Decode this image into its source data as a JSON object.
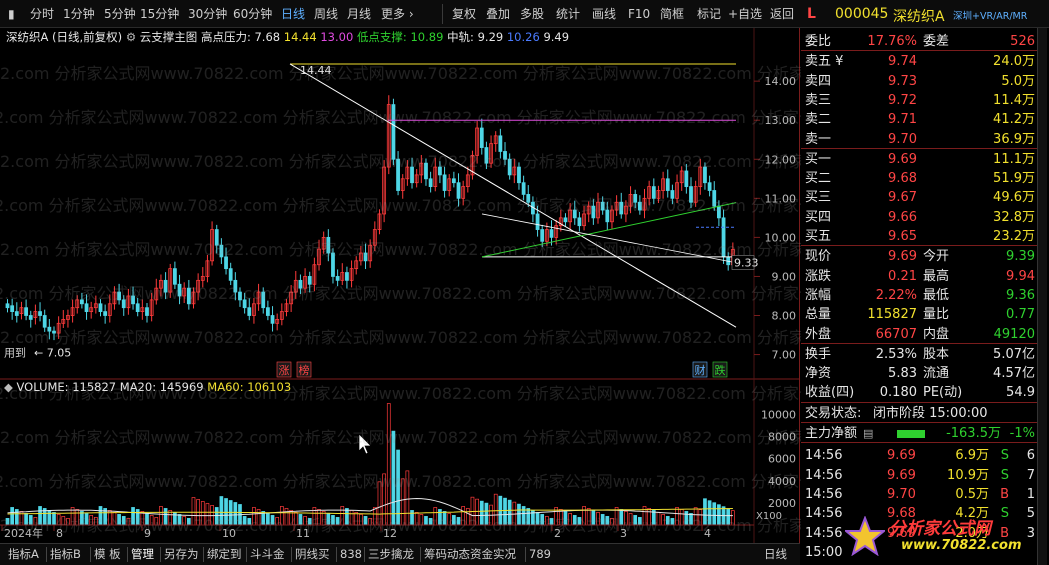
{
  "toolbar": {
    "periods": [
      "分时",
      "1分钟",
      "5分钟",
      "15分钟",
      "30分钟",
      "60分钟",
      "日线",
      "周线",
      "月线",
      "更多"
    ],
    "active_period": "日线",
    "tools": [
      "复权",
      "叠加",
      "多股",
      "统计",
      "画线",
      "F10",
      "简框",
      "标记",
      "+自选",
      "返回"
    ]
  },
  "indicator": {
    "stock": "深纺织A",
    "mode": "(日线,前复权)",
    "formula": "云支撑主图",
    "high_pressure_label": "高点压力:",
    "high_pressure_values": "7.68",
    "high_pressure_v2": "14.44",
    "high_pressure_v3": "13.00",
    "low_support_label": "低点支撑:",
    "low_support_value": "10.89",
    "mid_label": "中轨:",
    "mid_value": "9.29",
    "mid_v2": "10.26",
    "mid_v3": "9.49"
  },
  "chart": {
    "price_ticks": [
      "14.00",
      "13.00",
      "12.00",
      "11.00",
      "10.00",
      "9.00",
      "8.00",
      "7.00"
    ],
    "high_label": "14.44",
    "low_label": "7.05",
    "last_label": "9.33",
    "left_note": "用到",
    "volume_ticks": [
      "10000",
      "8000",
      "6000",
      "4000",
      "2000"
    ],
    "volume_unit": "X100",
    "date_labels": [
      "2024年",
      "8",
      "9",
      "10",
      "11",
      "12",
      "2",
      "3",
      "4"
    ],
    "markers": [
      {
        "text": "涨",
        "color": "#ff4545"
      },
      {
        "text": "榜",
        "color": "#ff4545"
      },
      {
        "text": "财",
        "color": "#5fb0ff"
      },
      {
        "text": "跌",
        "color": "#2fd12f"
      }
    ]
  },
  "volume": {
    "label": "VOLUME: 115827",
    "ma20": "MA20: 145969",
    "ma60": "MA60: 106103"
  },
  "bottom_tabs": [
    "指标A",
    "指标B",
    "模 板",
    "管理",
    "另存为",
    "绑定到",
    "斗斗金",
    "阴线买",
    "838",
    "三步擒龙",
    "筹码动态资金实况",
    "789"
  ],
  "bottom_right": "日线",
  "quote": {
    "code": "000045",
    "name": "深纺织A",
    "tags": "深圳+VR/AR/MR",
    "webi_label": "委比",
    "webi": "17.76%",
    "weicha_label": "委差",
    "weicha": "526",
    "sells": [
      {
        "label": "卖五",
        "price": "9.74",
        "vol": "24.0万"
      },
      {
        "label": "卖四",
        "price": "9.73",
        "vol": "5.0万"
      },
      {
        "label": "卖三",
        "price": "9.72",
        "vol": "11.4万"
      },
      {
        "label": "卖二",
        "price": "9.71",
        "vol": "41.2万"
      },
      {
        "label": "卖一",
        "price": "9.70",
        "vol": "36.9万"
      }
    ],
    "buys": [
      {
        "label": "买一",
        "price": "9.69",
        "vol": "11.1万"
      },
      {
        "label": "买二",
        "price": "9.68",
        "vol": "51.9万"
      },
      {
        "label": "买三",
        "price": "9.67",
        "vol": "49.6万"
      },
      {
        "label": "买四",
        "price": "9.66",
        "vol": "32.8万"
      },
      {
        "label": "买五",
        "price": "9.65",
        "vol": "23.2万"
      }
    ],
    "stats": [
      {
        "l1": "现价",
        "v1": "9.69",
        "c1": "red",
        "l2": "今开",
        "v2": "9.39",
        "c2": "green"
      },
      {
        "l1": "涨跌",
        "v1": "0.21",
        "c1": "red",
        "l2": "最高",
        "v2": "9.94",
        "c2": "red"
      },
      {
        "l1": "涨幅",
        "v1": "2.22%",
        "c1": "red",
        "l2": "最低",
        "v2": "9.36",
        "c2": "green"
      },
      {
        "l1": "总量",
        "v1": "115827",
        "c1": "yellow",
        "l2": "量比",
        "v2": "0.77",
        "c2": "green"
      },
      {
        "l1": "外盘",
        "v1": "66707",
        "c1": "red",
        "l2": "内盘",
        "v2": "49120",
        "c2": "green"
      }
    ],
    "stats2": [
      {
        "l1": "换手",
        "v1": "2.53%",
        "l2": "股本",
        "v2": "5.07亿"
      },
      {
        "l1": "净资",
        "v1": "5.83",
        "l2": "流通",
        "v2": "4.57亿"
      },
      {
        "l1": "收益(四)",
        "v1": "0.180",
        "l2": "PE(动)",
        "v2": "54.9"
      }
    ],
    "trade_state_label": "交易状态:",
    "trade_state": "闭市阶段 15:00:00",
    "main_flow_label": "主力净额",
    "main_flow": "-163.5万",
    "main_flow_pct": "-1%",
    "ticks": [
      {
        "time": "14:56",
        "price": "9.69",
        "vol": "6.9万",
        "side": "S",
        "n": "6"
      },
      {
        "time": "14:56",
        "price": "9.69",
        "vol": "10.9万",
        "side": "S",
        "n": "7"
      },
      {
        "time": "14:56",
        "price": "9.70",
        "vol": "0.5万",
        "side": "B",
        "n": "1"
      },
      {
        "time": "14:56",
        "price": "9.68",
        "vol": "4.2万",
        "side": "S",
        "n": "5"
      },
      {
        "time": "14:56",
        "price": "9.69",
        "vol": "2.0万",
        "side": "B",
        "n": "3"
      },
      {
        "time": "15:00",
        "price": "",
        "vol": "",
        "side": "",
        "n": ""
      }
    ]
  },
  "watermark": {
    "text": "2.com 分析家公式网www.70822.com 分析家公式网www.70822.com 分析家公式网www.70822.com 分析家公式",
    "logo_title": "分析家公式网",
    "logo_url": "www.70822.com"
  }
}
